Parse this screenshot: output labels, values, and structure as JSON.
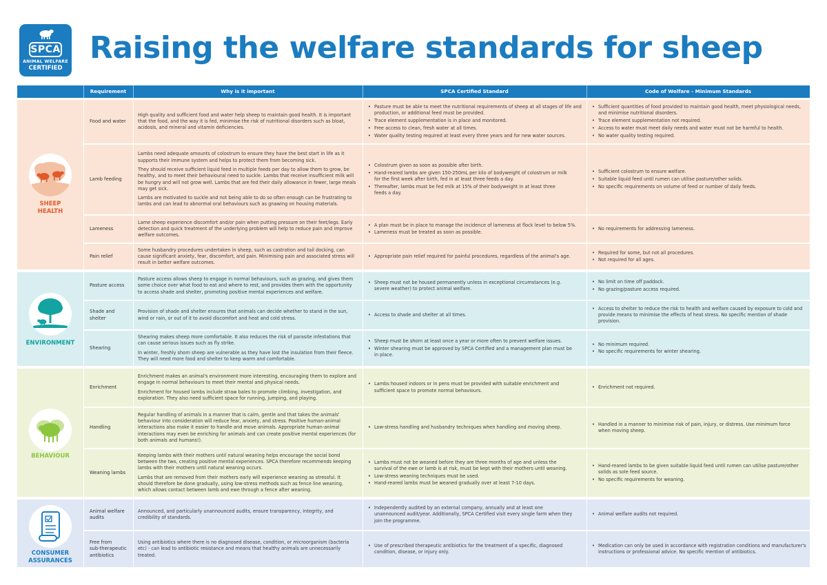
{
  "logo": {
    "brand": "SPCA",
    "line1": "ANIMAL WELFARE",
    "line2": "CERTIFIED"
  },
  "title": "Raising the welfare standards for sheep",
  "headers": [
    "Requirement",
    "Why is it important",
    "SPCA Certified Standard",
    "Code of Welfare - Minimum Standards"
  ],
  "colors": {
    "blue": "#1b7cc0",
    "health": "#fbe4d6",
    "health_accent": "#e05a2b",
    "environment": "#d9eef1",
    "environment_accent": "#13a3a1",
    "behaviour": "#edf2d9",
    "behaviour_accent": "#8cc63f",
    "consumer": "#dfe6f4",
    "consumer_accent": "#1b7cc0"
  },
  "sections": [
    {
      "label": "SHEEP\nHEALTH",
      "icon": "sheep-in-field-icon",
      "rows": [
        {
          "requirement": "Food and water",
          "why": [
            "High quality and sufficient food and water help sheep to maintain good health. It is important that the food, and the way it is fed, minimise the risk of nutritional disorders such as bloat, acidosis, and mineral and vitamin deficiencies."
          ],
          "spca": [
            "Pasture must be able to meet the nutritional requirements of sheep at all stages of life and production, or additional feed must be provided.",
            "Trace element supplementation is in place and monitored.",
            "Free access to clean, fresh water at all times.",
            "Water quality testing required at least every three years and for new water sources."
          ],
          "code": [
            "Sufficient quantities of food provided to maintain good health, meet physiological needs, and minimise nutritional disorders.",
            "Trace element supplementation not required.",
            "Access to water must meet daily needs and water must not be harmful to health.",
            "No water quality testing required."
          ]
        },
        {
          "requirement": "Lamb feeding",
          "why": [
            "Lambs need adequate amounts of colostrum to ensure they have the best start in life as it supports their immune system and helps to protect them from becoming sick.",
            "They should receive sufficient liquid feed in multiple feeds per day to allow them to grow, be healthy, and to meet their behavioural need to suckle. Lambs that receive insufficient milk will be hungry and will not grow well. Lambs that are fed their daily allowance in fewer, large meals may get sick.",
            "Lambs are motivated to suckle and not being able to do so often enough can be frustrating to lambs and can lead to abnormal oral behaviours such as gnawing on housing materials."
          ],
          "spca": [
            "Colostrum given as soon as possible after birth.",
            "Hand-reared lambs are given 150-250mL per kilo of bodyweight of colostrum or milk for the first week after birth, fed in at least three feeds a day.",
            "Thereafter, lambs must be fed milk at 15% of their bodyweight in at least three feeds a day."
          ],
          "code": [
            "Sufficient colostrum to ensure welfare.",
            "Suitable liquid feed until rumen can utilise pasture/other solids.",
            "No specific requirements on volume of feed or number of daily feeds."
          ]
        },
        {
          "requirement": "Lameness",
          "why": [
            "Lame sheep experience discomfort and/or pain when putting pressure on their feet/legs. Early detection and quick treatment of the underlying problem will help to reduce pain and improve welfare outcomes."
          ],
          "spca": [
            "A plan must be in place to manage the incidence of lameness at flock level to below 5%.",
            "Lameness must be treated as soon as possible."
          ],
          "code": [
            "No requirements for addressing lameness."
          ]
        },
        {
          "requirement": "Pain relief",
          "why": [
            "Some husbandry procedures undertaken in sheep, such as castration and tail docking, can cause significant anxiety, fear, discomfort, and pain. Minimising pain and associated stress will result in better welfare outcomes."
          ],
          "spca": [
            "Appropriate pain relief required for painful procedures, regardless of the animal's age."
          ],
          "code": [
            "Required for some, but not all procedures.",
            "Not required for all ages."
          ]
        }
      ]
    },
    {
      "label": "ENVIRONMENT",
      "icon": "tree-with-sheep-icon",
      "rows": [
        {
          "requirement": "Pasture access",
          "why": [
            "Pasture access allows sheep to engage in normal behaviours, such as grazing, and gives them some choice over what food to eat and where to rest, and provides them with the opportunity to access shade and shelter, promoting positive mental experiences and welfare."
          ],
          "spca": [
            "Sheep must not be housed permanently unless in exceptional circumstances (e.g. severe weather) to protect animal welfare."
          ],
          "code": [
            "No limit on time off paddock.",
            "No grazing/pasture access required."
          ]
        },
        {
          "requirement": "Shade and\nshelter",
          "why": [
            "Provision of shade and shelter ensures that animals can decide whether to stand in the sun, wind or rain, or out of it to avoid discomfort and heat and cold stress."
          ],
          "spca": [
            "Access to shade and shelter at all times."
          ],
          "code": [
            "Access to shelter to reduce the risk to health and welfare caused by exposure to cold and provide means to minimise the effects of heat stress. No specific mention of shade provision."
          ]
        },
        {
          "requirement": "Shearing",
          "why": [
            "Shearing makes sheep more comfortable. It also reduces the risk of parasite infestations that can cause serious issues such as fly strike.",
            "In winter, freshly shorn sheep are vulnerable as they have lost the insulation from their fleece. They will need more food and shelter to keep warm and comfortable."
          ],
          "spca": [
            "Sheep must be shorn at least once a year or more often to prevent welfare issues.",
            "Winter shearing must be approved by SPCA Certified and a management plan must be in place."
          ],
          "code": [
            "No minimum required.",
            "No specific requirements for winter shearing."
          ]
        }
      ]
    },
    {
      "label": "BEHAVIOUR",
      "icon": "sheep-flock-icon",
      "rows": [
        {
          "requirement": "Enrichment",
          "why": [
            "Enrichment makes an animal's environment more interesting, encouraging them to explore and engage in normal behaviours to meet their mental and physical needs.",
            "Enrichment for housed lambs include straw bales to promote climbing, investigation, and exploration. They also need sufficient space for running, jumping, and playing."
          ],
          "spca": [
            "Lambs housed indoors or in pens must be provided with suitable enrichment and sufficient space to promote normal behaviours."
          ],
          "code": [
            "Enrichment not required."
          ]
        },
        {
          "requirement": "Handling",
          "why": [
            "Regular handling of animals in a manner that is calm, gentle and that takes the animals' behaviour into consideration will reduce fear, anxiety, and stress. Positive human-animal interactions also make it easier to handle and move animals. Appropriate human-animal interactions may even be enriching for animals and can create positive mental experiences (for both animals and humans!)."
          ],
          "spca": [
            "Low-stress handling and husbandry techniques when handling and moving sheep."
          ],
          "code": [
            "Handled in a manner to minimise risk of pain, injury, or distress. Use minimum force when moving sheep."
          ]
        },
        {
          "requirement": "Weaning lambs",
          "why": [
            "Keeping lambs with their mothers until natural weaning helps encourage the social bond between the two, creating positive mental experiences. SPCA therefore recommends keeping lambs with their mothers until natural weaning occurs.",
            "Lambs that are removed from their mothers early will experience weaning as stressful. It should therefore be done gradually, using low-stress methods such as fence line weaning, which allows contact between lamb and ewe through a fence after weaning."
          ],
          "spca": [
            "Lambs must not be weaned before they are three months of age and unless the survival of the ewe or lamb is at risk, must be kept with their mothers until weaning.",
            "Low-stress weaning techniques must be used.",
            "Hand-reared lambs must be weaned gradually over at least 7-10 days."
          ],
          "code": [
            "Hand-reared lambs to be given suitable liquid feed until rumen can utilise pasture/other solids as sole feed source.",
            "No specific requirements for weaning."
          ]
        }
      ]
    },
    {
      "label": "CONSUMER\nASSURANCES",
      "icon": "certificate-scroll-icon",
      "rows": [
        {
          "requirement": "Animal welfare\naudits",
          "why": [
            "Announced, and particularly unannounced audits, ensure transparency, integrity, and credibility of standards."
          ],
          "spca": [
            "Independently audited by an external company, annually and at least one unannounced audit/year. Additionally, SPCA Certified visit every single farm when they join the programme."
          ],
          "code": [
            "Animal welfare audits not required."
          ]
        },
        {
          "requirement": "Free from\nsub-therapeutic\nantibiotics",
          "why": [
            "Using antibiotics where there is no diagnosed disease, condition, or microorganism (bacteria etc) - can lead to antibiotic resistance and means that healthy animals are unnecessarily treated."
          ],
          "spca": [
            "Use of prescribed therapeutic antibiotics for the treatment of a specific, diagnosed condition, disease, or injury only."
          ],
          "code": [
            "Medication can only be used in accordance with registration conditions and manufacturer's instructions or professional advice. No specific mention of antibiotics."
          ]
        }
      ]
    }
  ]
}
